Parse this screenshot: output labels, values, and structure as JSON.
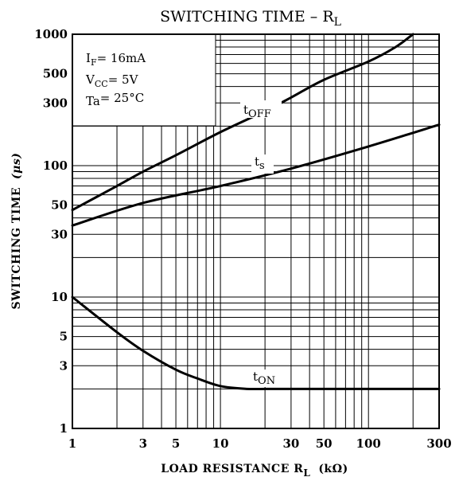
{
  "chart_data": {
    "type": "line",
    "title": "SWITCHING TIME – R",
    "title_subscript": "L",
    "xlabel": "LOAD RESISTANCE   R",
    "xlabel_subscript": "L",
    "xlabel_unit": "(kΩ)",
    "ylabel": "SWITCHING TIME",
    "ylabel_unit": "(μs)",
    "x_scale": "log",
    "y_scale": "log",
    "xlim": [
      1,
      300
    ],
    "ylim": [
      1,
      1000
    ],
    "grid": true,
    "x_tick_labels": [
      "1",
      "3",
      "5",
      "10",
      "30",
      "50",
      "100",
      "300"
    ],
    "x_ticks": [
      1,
      3,
      5,
      10,
      30,
      50,
      100,
      300
    ],
    "y_tick_labels": [
      "1",
      "3",
      "5",
      "10",
      "30",
      "50",
      "100",
      "300",
      "500",
      "1000"
    ],
    "y_ticks": [
      1,
      3,
      5,
      10,
      30,
      50,
      100,
      300,
      500,
      1000
    ],
    "conditions": [
      {
        "main": "I",
        "sub": "F",
        "rest": "= 16mA"
      },
      {
        "main": "V",
        "sub": "CC",
        "rest": "= 5V"
      },
      {
        "main": "Ta",
        "sub": "",
        "rest": "= 25°C"
      }
    ],
    "series": [
      {
        "name": "t",
        "name_subscript": "OFF",
        "x": [
          1,
          2,
          3,
          5,
          10,
          20,
          30,
          50,
          100,
          150,
          200
        ],
        "y": [
          46,
          70,
          90,
          120,
          180,
          260,
          330,
          450,
          620,
          790,
          1000
        ]
      },
      {
        "name": "t",
        "name_subscript": "s",
        "x": [
          1,
          3,
          10,
          30,
          100,
          300
        ],
        "y": [
          35,
          52,
          70,
          95,
          140,
          205
        ]
      },
      {
        "name": "t",
        "name_subscript": "ON",
        "x": [
          1,
          2,
          3,
          5,
          7,
          10,
          15,
          20,
          30,
          100,
          300
        ],
        "y": [
          10,
          5.4,
          3.9,
          2.8,
          2.4,
          2.1,
          2.0,
          2.0,
          2.0,
          2.0,
          2.0
        ]
      }
    ],
    "line_color": "#000000",
    "grid_color": "#000000"
  }
}
